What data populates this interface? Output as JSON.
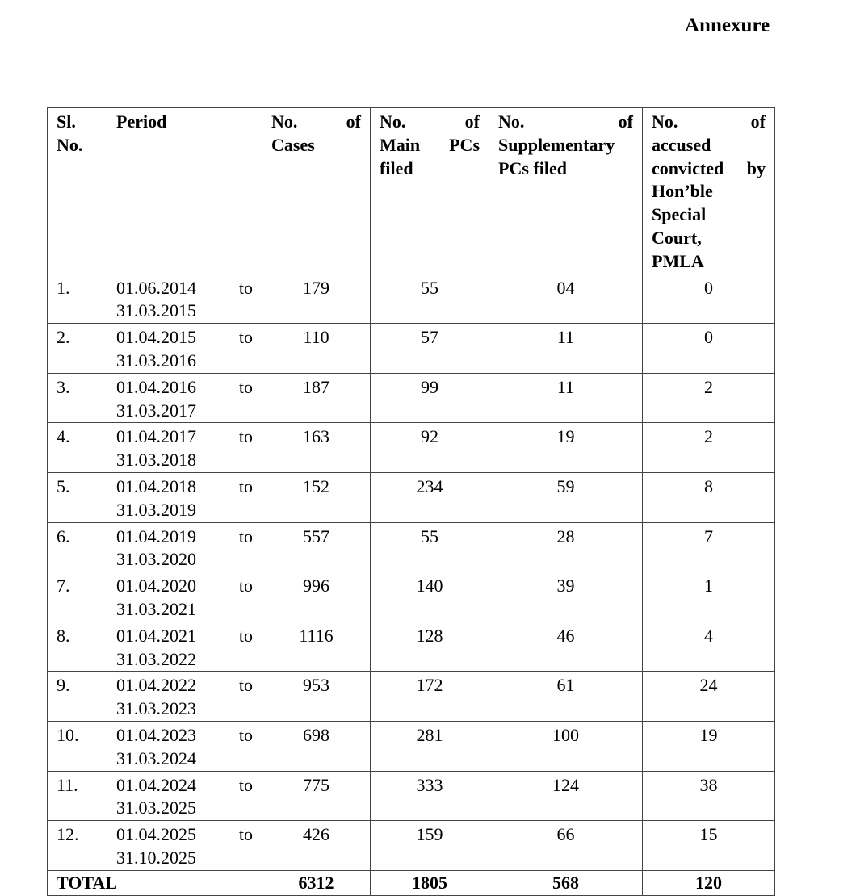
{
  "title": "Annexure",
  "table": {
    "header": [
      {
        "lines": [
          "Sl.",
          "No."
        ]
      },
      {
        "lines": [
          "Period"
        ]
      },
      {
        "lines": [
          "No. of",
          "Cases"
        ]
      },
      {
        "lines": [
          "No. of",
          "Main PCs",
          "filed"
        ]
      },
      {
        "lines": [
          "No. of",
          "Supplementary",
          "PCs filed"
        ]
      },
      {
        "lines": [
          "No. of",
          "accused",
          "convicted by",
          "Hon’ble",
          "Special",
          "Court,",
          "PMLA"
        ]
      }
    ],
    "rows": [
      {
        "sl": "1.",
        "from": "01.06.2014",
        "to_word": "to",
        "to": "31.03.2015",
        "cases": "179",
        "main_pcs": "55",
        "supp_pcs": "04",
        "convicted": "0"
      },
      {
        "sl": "2.",
        "from": "01.04.2015",
        "to_word": "to",
        "to": "31.03.2016",
        "cases": "110",
        "main_pcs": "57",
        "supp_pcs": "11",
        "convicted": "0"
      },
      {
        "sl": "3.",
        "from": "01.04.2016",
        "to_word": "to",
        "to": "31.03.2017",
        "cases": "187",
        "main_pcs": "99",
        "supp_pcs": "11",
        "convicted": "2"
      },
      {
        "sl": "4.",
        "from": "01.04.2017",
        "to_word": "to",
        "to": "31.03.2018",
        "cases": "163",
        "main_pcs": "92",
        "supp_pcs": "19",
        "convicted": "2"
      },
      {
        "sl": "5.",
        "from": "01.04.2018",
        "to_word": "to",
        "to": "31.03.2019",
        "cases": "152",
        "main_pcs": "234",
        "supp_pcs": "59",
        "convicted": "8"
      },
      {
        "sl": "6.",
        "from": "01.04.2019",
        "to_word": "to",
        "to": "31.03.2020",
        "cases": "557",
        "main_pcs": "55",
        "supp_pcs": "28",
        "convicted": "7"
      },
      {
        "sl": "7.",
        "from": "01.04.2020",
        "to_word": "to",
        "to": "31.03.2021",
        "cases": "996",
        "main_pcs": "140",
        "supp_pcs": "39",
        "convicted": "1"
      },
      {
        "sl": "8.",
        "from": "01.04.2021",
        "to_word": "to",
        "to": "31.03.2022",
        "cases": "1116",
        "main_pcs": "128",
        "supp_pcs": "46",
        "convicted": "4"
      },
      {
        "sl": "9.",
        "from": "01.04.2022",
        "to_word": "to",
        "to": "31.03.2023",
        "cases": "953",
        "main_pcs": "172",
        "supp_pcs": "61",
        "convicted": "24"
      },
      {
        "sl": "10.",
        "from": "01.04.2023",
        "to_word": "to",
        "to": "31.03.2024",
        "cases": "698",
        "main_pcs": "281",
        "supp_pcs": "100",
        "convicted": "19"
      },
      {
        "sl": "11.",
        "from": "01.04.2024",
        "to_word": "to",
        "to": "31.03.2025",
        "cases": "775",
        "main_pcs": "333",
        "supp_pcs": "124",
        "convicted": "38"
      },
      {
        "sl": "12.",
        "from": "01.04.2025",
        "to_word": "to",
        "to": "31.10.2025",
        "cases": "426",
        "main_pcs": "159",
        "supp_pcs": "66",
        "convicted": "15"
      }
    ],
    "total": {
      "label": "TOTAL",
      "cases": "6312",
      "main_pcs": "1805",
      "supp_pcs": "568",
      "convicted": "120"
    }
  }
}
